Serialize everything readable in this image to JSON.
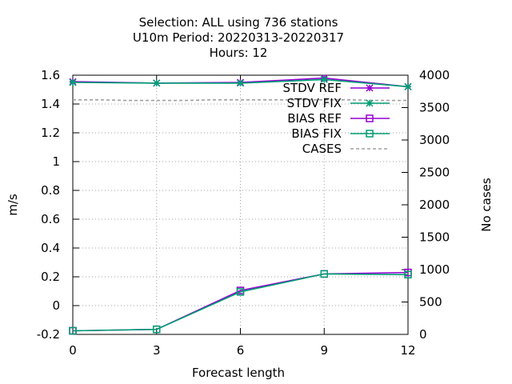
{
  "chart_data": {
    "type": "line",
    "title_lines": [
      "Selection: ALL using   736 stations",
      "U10m   Period: 20220313-20220317",
      "Hours:  12"
    ],
    "xlabel": "Forecast length",
    "ylabel": "m/s",
    "y2label": "No cases",
    "x": [
      0,
      3,
      6,
      9,
      12
    ],
    "xlim": [
      0,
      12
    ],
    "ylim": [
      -0.2,
      1.6
    ],
    "y2lim": [
      0,
      4000
    ],
    "x_ticks": [
      "0",
      "3",
      "6",
      "9",
      "12"
    ],
    "y_ticks": [
      "-0.2",
      "0",
      "0.2",
      "0.4",
      "0.6",
      "0.8",
      "1",
      "1.2",
      "1.4",
      "1.6"
    ],
    "y2_ticks": [
      "0",
      "500",
      "1000",
      "1500",
      "2000",
      "2500",
      "3000",
      "3500",
      "4000"
    ],
    "grid": true,
    "legend_position": "top-right",
    "series": [
      {
        "name": "STDV REF",
        "axis": "y",
        "color": "#9400d3",
        "marker": "star",
        "dash": false,
        "values": [
          1.555,
          1.545,
          1.55,
          1.58,
          1.52
        ]
      },
      {
        "name": "STDV FIX",
        "axis": "y",
        "color": "#009e73",
        "marker": "star",
        "dash": false,
        "values": [
          1.55,
          1.545,
          1.545,
          1.57,
          1.52
        ]
      },
      {
        "name": "BIAS REF",
        "axis": "y",
        "color": "#9400d3",
        "marker": "square",
        "dash": false,
        "values": [
          -0.175,
          -0.165,
          0.105,
          0.22,
          0.23
        ]
      },
      {
        "name": "BIAS FIX",
        "axis": "y",
        "color": "#009e73",
        "marker": "square",
        "dash": false,
        "values": [
          -0.175,
          -0.165,
          0.095,
          0.22,
          0.215
        ]
      },
      {
        "name": "CASES",
        "axis": "y2",
        "color": "#a0a0a0",
        "marker": "none",
        "dash": true,
        "x": [
          0,
          1,
          2,
          3,
          4,
          5,
          6,
          7,
          8,
          9,
          10,
          11,
          12
        ],
        "values": [
          3620,
          3620,
          3610,
          3610,
          3610,
          3620,
          3620,
          3620,
          3620,
          3620,
          3620,
          3610,
          3610
        ]
      }
    ]
  }
}
